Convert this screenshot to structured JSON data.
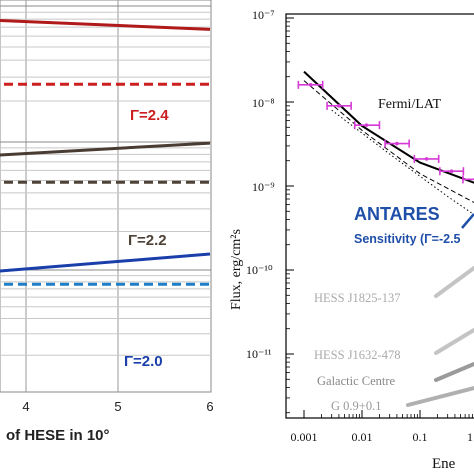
{
  "chart_data": [
    {
      "type": "line",
      "panel": "left",
      "xlabel": "of HESE in 10°",
      "xlim": [
        3,
        6
      ],
      "x_ticks": [
        "4",
        "5",
        "6"
      ],
      "grid": true,
      "legend": "inline",
      "series": [
        {
          "name": "Γ=2.4",
          "style": "solid",
          "color": "#b01a1a",
          "x": [
            3,
            6
          ],
          "y_frac": [
            0.045,
            0.075
          ]
        },
        {
          "name": "Γ=2.4",
          "style": "dashed",
          "color": "#cc1f1f",
          "x": [
            3,
            6
          ],
          "y_frac": [
            0.215,
            0.215
          ]
        },
        {
          "name": "Γ=2.2",
          "style": "solid",
          "color": "#4a3c32",
          "x": [
            3,
            6
          ],
          "y_frac": [
            0.405,
            0.365
          ]
        },
        {
          "name": "Γ=2.2",
          "style": "dashed",
          "color": "#4f4236",
          "x": [
            3,
            6
          ],
          "y_frac": [
            0.465,
            0.465
          ]
        },
        {
          "name": "Γ=2.0",
          "style": "solid",
          "color": "#1b3faa",
          "x": [
            3,
            6
          ],
          "y_frac": [
            0.705,
            0.648
          ]
        },
        {
          "name": "Γ=2.0",
          "style": "dashed",
          "color": "#1e7fc8",
          "x": [
            3,
            6
          ],
          "y_frac": [
            0.725,
            0.725
          ]
        }
      ],
      "labels": [
        {
          "text": "Γ=2.4",
          "color": "#cc1f1f"
        },
        {
          "text": "Γ=2.2",
          "color": "#4f4236"
        },
        {
          "text": "Γ=2.0",
          "color": "#1b3faa"
        }
      ]
    },
    {
      "type": "scatter",
      "panel": "right",
      "ylabel": "Flux, erg/cm²s",
      "xlabel": "Ene",
      "xscale": "log",
      "yscale": "log",
      "xlim": [
        0.0005,
        3
      ],
      "ylim": [
        3e-12,
        1e-07
      ],
      "x_ticks": [
        "0.001",
        "0.01",
        "0.1",
        "1"
      ],
      "y_ticks": [
        "10⁻⁷",
        "10⁻⁸",
        "10⁻⁹",
        "10⁻¹⁰",
        "10⁻¹¹"
      ],
      "series": [
        {
          "name": "Fermi/LAT",
          "color": "#d63ad6",
          "x": [
            0.0013,
            0.004,
            0.012,
            0.04,
            0.13,
            0.35,
            0.9
          ],
          "y": [
            1.6e-08,
            9e-09,
            5.3e-09,
            3.2e-09,
            2.1e-09,
            1.5e-09,
            1.2e-09
          ],
          "xerr_low": [
            0.0008,
            0.0025,
            0.0075,
            0.025,
            0.08,
            0.22,
            0.55
          ],
          "xerr_high": [
            0.0021,
            0.0065,
            0.02,
            0.065,
            0.21,
            0.56,
            1.4
          ]
        }
      ],
      "curves": [
        {
          "name": "fit",
          "style": "solid",
          "color": "#000000",
          "x": [
            0.001,
            0.01,
            0.1,
            1
          ],
          "y": [
            2.3e-08,
            5.2e-09,
            1.9e-09,
            1.05e-09
          ]
        },
        {
          "name": "dashed model",
          "style": "dashed",
          "color": "#000000",
          "x": [
            0.001,
            0.01,
            0.1,
            1
          ],
          "y": [
            1.8e-08,
            4.6e-09,
            1.4e-09,
            6e-10
          ]
        },
        {
          "name": "dotted model",
          "style": "dotted",
          "color": "#000000",
          "x": [
            0.003,
            0.03,
            0.3,
            1.5
          ],
          "y": [
            8e-09,
            2.4e-09,
            7.5e-10,
            3.5e-10
          ]
        }
      ],
      "annotations": {
        "fermi": "Fermi/LAT",
        "antares": "ANTARES",
        "sensitivity": "Sensitivity (Γ=-2.5",
        "sources": [
          "HESS J1825-137",
          "HESS J1632-478",
          "Galactic Centre",
          "G 0.9+0.1"
        ]
      }
    }
  ]
}
